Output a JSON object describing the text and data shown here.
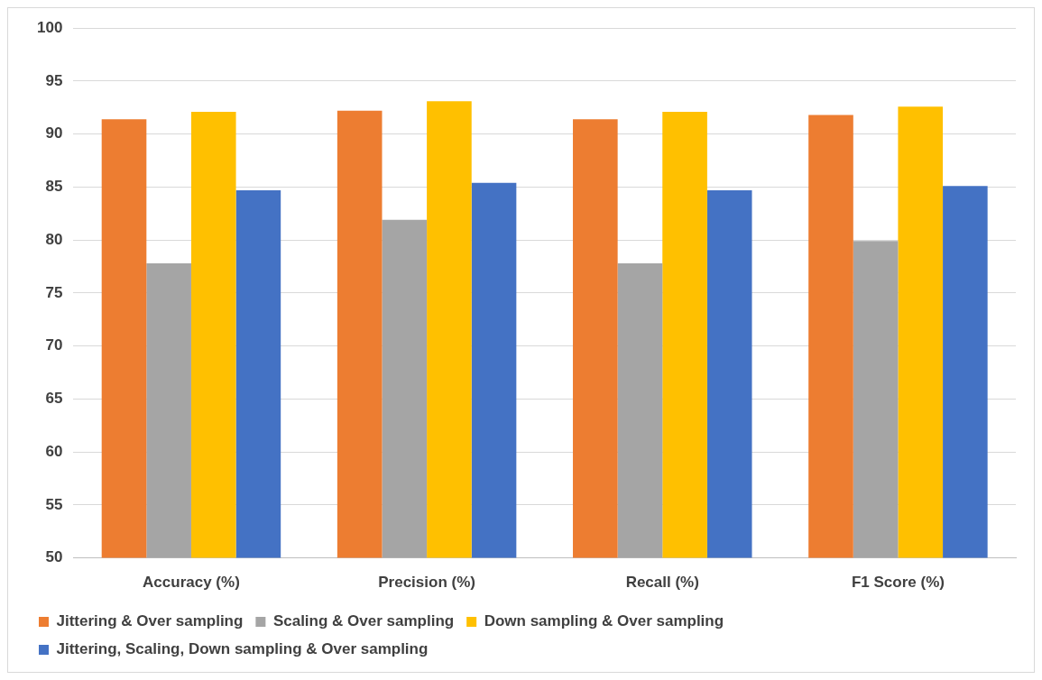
{
  "chart_data": {
    "type": "bar",
    "categories": [
      "Accuracy (%)",
      "Precision (%)",
      "Recall (%)",
      "F1 Score (%)"
    ],
    "series": [
      {
        "name": "Jittering & Over sampling",
        "color": "#ed7d31",
        "values": [
          91.4,
          92.2,
          91.4,
          91.8
        ]
      },
      {
        "name": "Scaling & Over sampling",
        "color": "#a5a5a5",
        "values": [
          77.8,
          81.9,
          77.8,
          79.9
        ]
      },
      {
        "name": "Down sampling & Over sampling",
        "color": "#ffc000",
        "values": [
          92.1,
          93.1,
          92.1,
          92.6
        ]
      },
      {
        "name": "Jittering, Scaling, Down sampling & Over sampling",
        "color": "#4472c4",
        "values": [
          84.7,
          85.4,
          84.7,
          85.1
        ]
      }
    ],
    "ylim": [
      50,
      100
    ],
    "yticks": [
      50,
      55,
      60,
      65,
      70,
      75,
      80,
      85,
      90,
      95,
      100
    ],
    "grid": "y",
    "legend": "bottom"
  }
}
